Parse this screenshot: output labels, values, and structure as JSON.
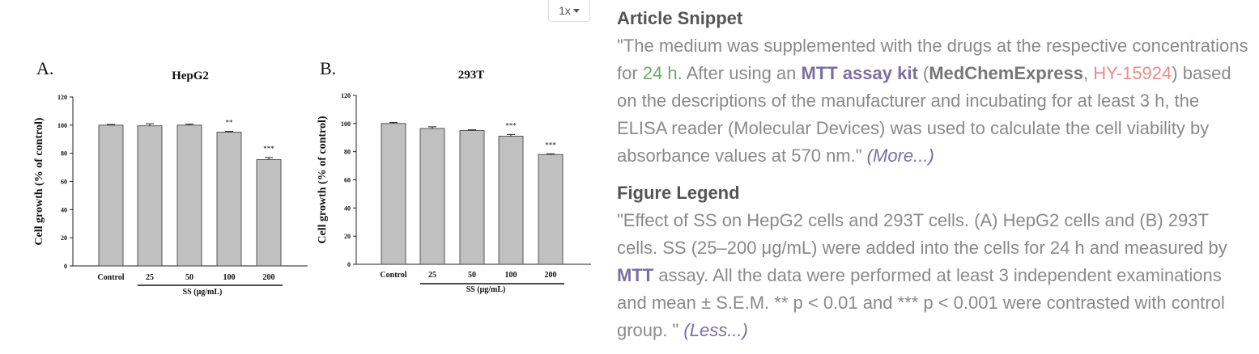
{
  "zoom_button": "1x",
  "chart_data": [
    {
      "type": "bar",
      "panel_label": "A.",
      "title": "HepG2",
      "ylabel": "Cell growth (% of control)",
      "categories": [
        "Control",
        "25",
        "50",
        "100",
        "200"
      ],
      "values": [
        100,
        99.5,
        100,
        95,
        75.5
      ],
      "errors": [
        0.5,
        1.5,
        0.8,
        0.5,
        1.5
      ],
      "significance": [
        null,
        null,
        null,
        "**",
        "***"
      ],
      "group_label": "SS (μg/mL)",
      "ylim": [
        0,
        120
      ],
      "yticks": [
        0,
        20,
        40,
        60,
        80,
        100,
        120
      ],
      "color": "#c0c0c0"
    },
    {
      "type": "bar",
      "panel_label": "B.",
      "title": "293T",
      "ylabel": "Cell growth (% of control)",
      "categories": [
        "Control",
        "25",
        "50",
        "100",
        "200"
      ],
      "values": [
        100,
        96.5,
        95,
        91,
        78
      ],
      "errors": [
        0.8,
        1.2,
        0.5,
        1.2,
        0.5
      ],
      "significance": [
        null,
        null,
        null,
        "***",
        "***"
      ],
      "group_label": "SS (μg/mL)",
      "ylim": [
        0,
        120
      ],
      "yticks": [
        0,
        20,
        40,
        60,
        80,
        100,
        120
      ],
      "color": "#c0c0c0"
    }
  ],
  "article_snippet": {
    "heading": "Article Snippet",
    "segments": [
      {
        "text": "\"The medium was supplemented with the drugs at the respective concentrations for ",
        "style": "plain"
      },
      {
        "text": "24 h",
        "style": "green"
      },
      {
        "text": ". After using an ",
        "style": "plain"
      },
      {
        "text": "MTT assay kit",
        "style": "purple"
      },
      {
        "text": " (",
        "style": "plain"
      },
      {
        "text": "MedChemExpress",
        "style": "bold"
      },
      {
        "text": ", ",
        "style": "plain"
      },
      {
        "text": "HY-15924",
        "style": "red"
      },
      {
        "text": ") based on the descriptions of the manufacturer and incubating for at least 3 h, the ELISA reader (Molecular Devices) was used to calculate the cell viability by absorbance values at 570 nm.\" ",
        "style": "plain"
      },
      {
        "text": "(More...)",
        "style": "toggle"
      }
    ]
  },
  "figure_legend": {
    "heading": "Figure Legend",
    "segments": [
      {
        "text": "\"Effect of SS on HepG2 cells and 293T cells. (A) HepG2 cells and (B) 293T cells. SS (25–200 μg/mL) were added into the cells for 24 h and measured by ",
        "style": "plain"
      },
      {
        "text": "MTT",
        "style": "purple"
      },
      {
        "text": " assay. All the data were performed at least 3 independent examinations and mean ± S.E.M. ** p < 0.01 and *** p < 0.001 were contrasted with control group. \" ",
        "style": "plain"
      },
      {
        "text": "(Less...)",
        "style": "toggle"
      }
    ]
  }
}
